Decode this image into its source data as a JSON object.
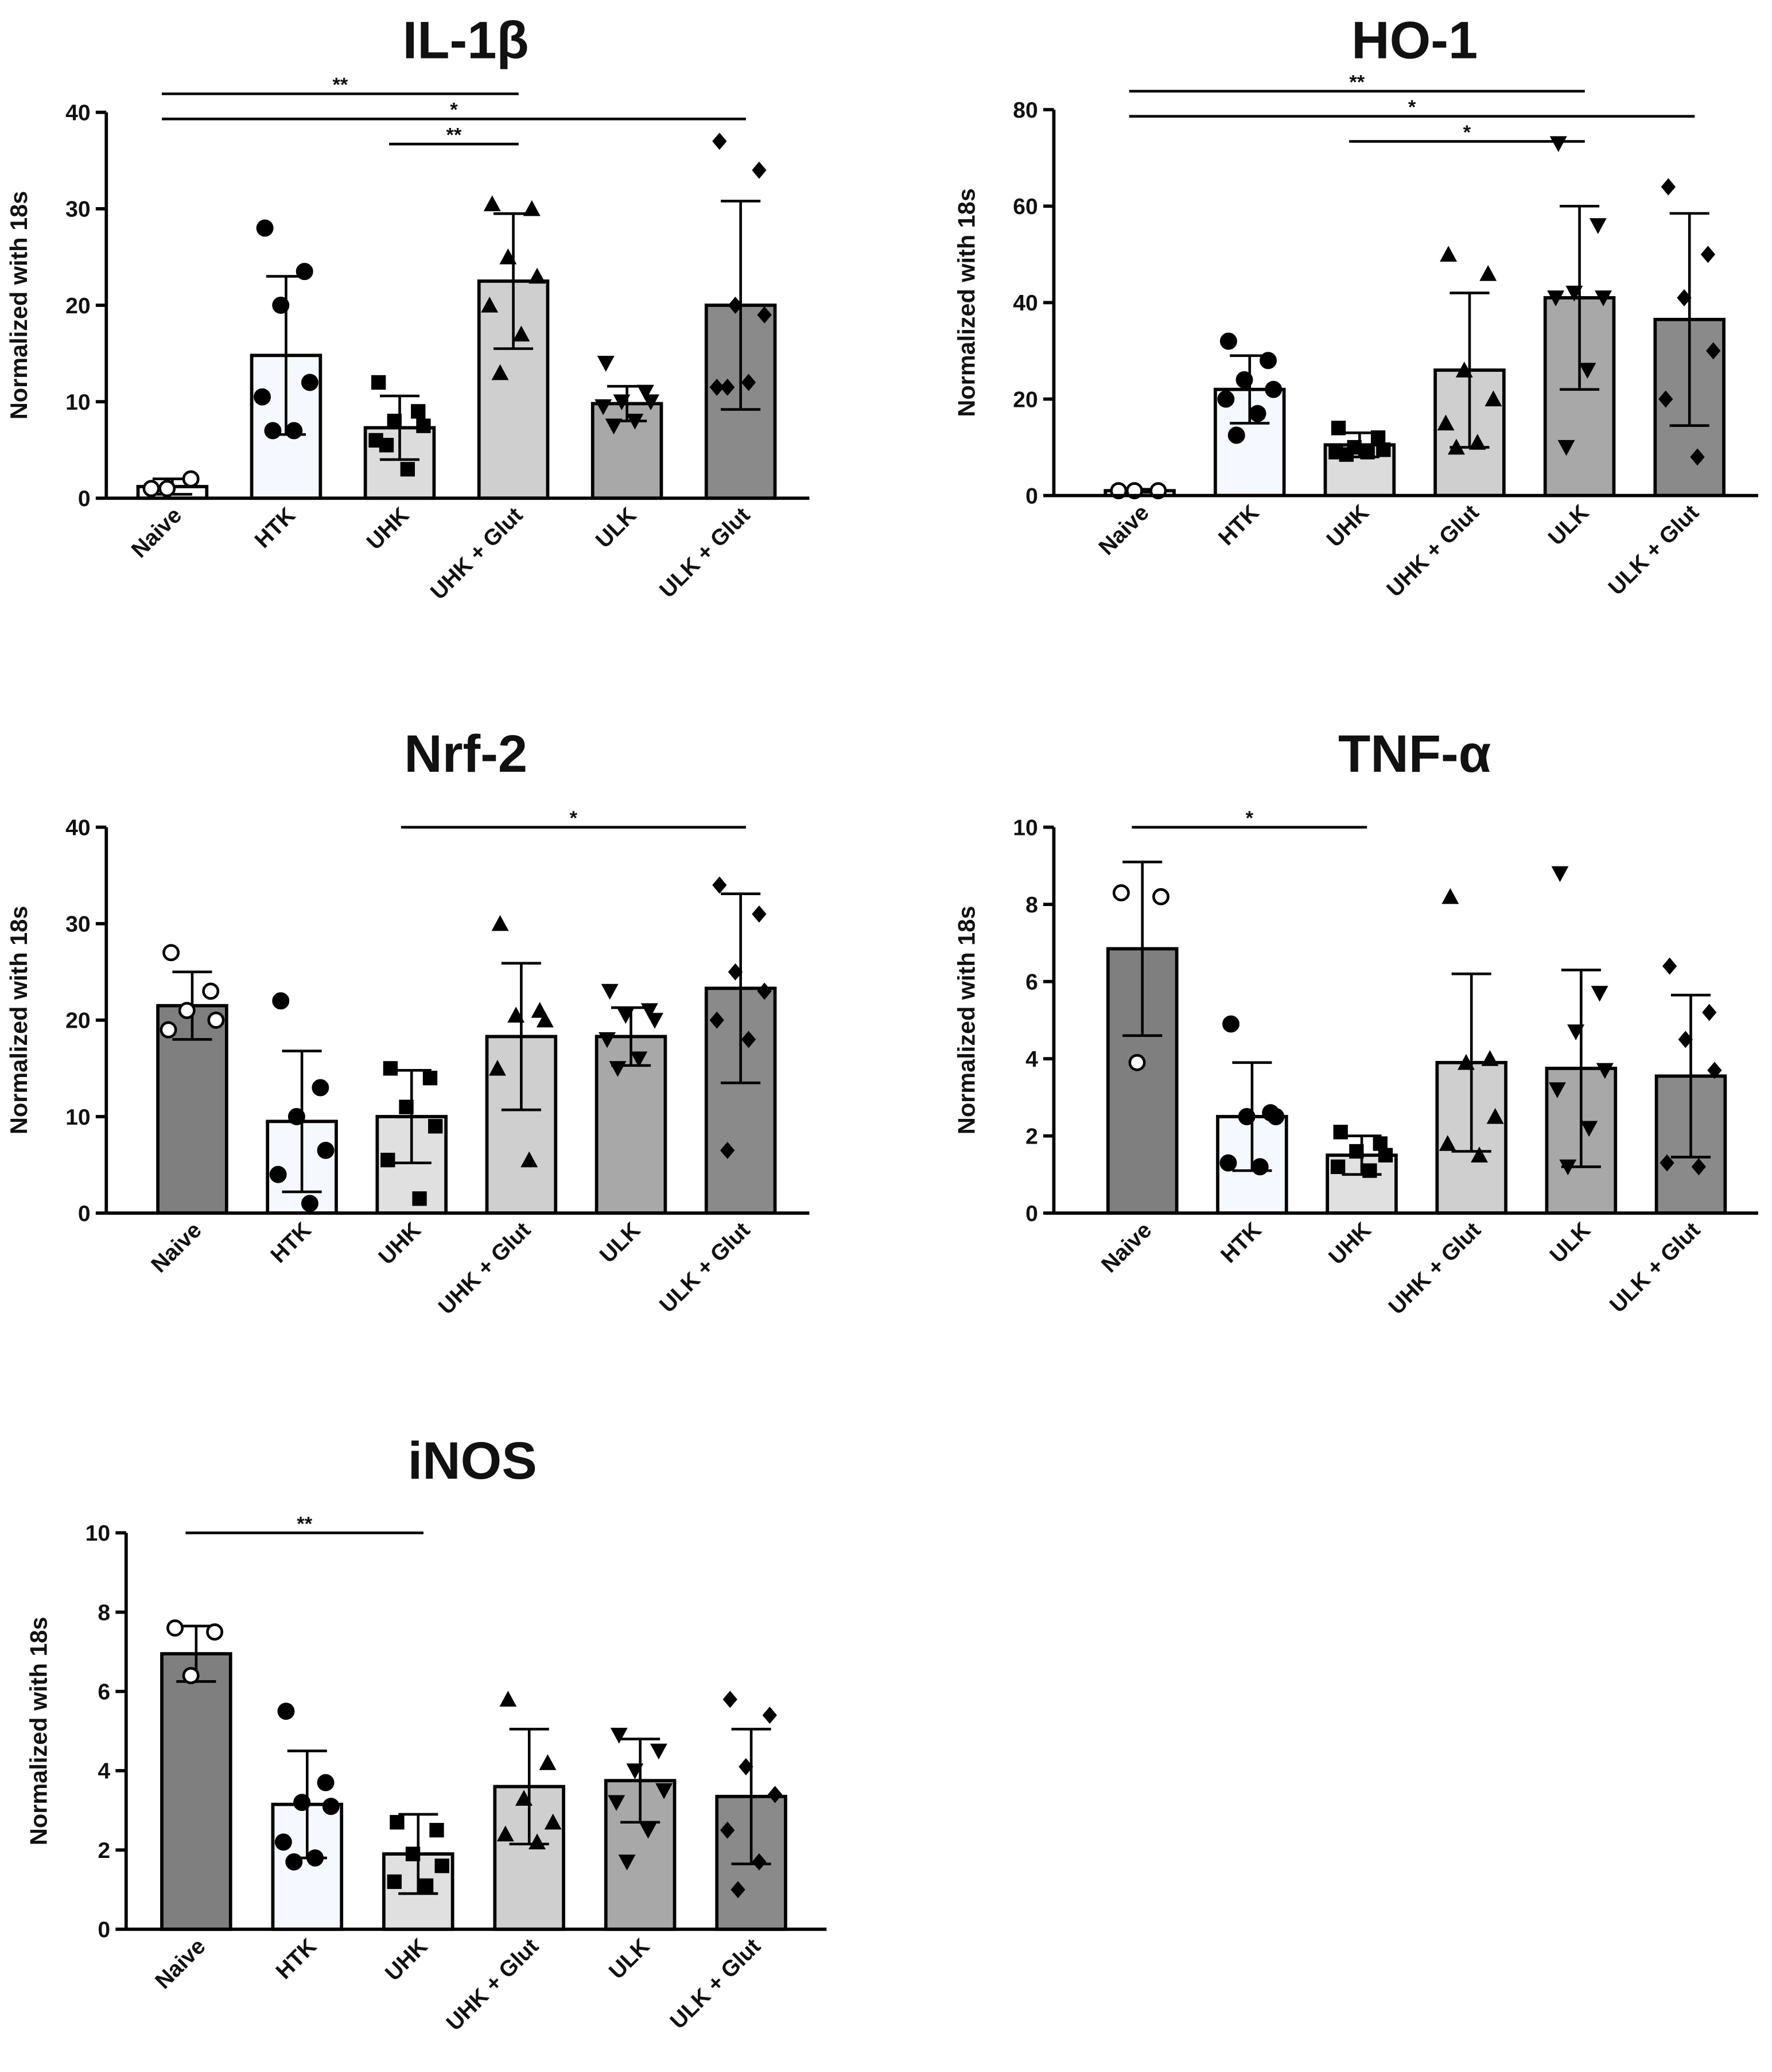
{
  "chart_data": [
    {
      "type": "bar",
      "title": "IL-1β",
      "y_label": "Normalized with 18s",
      "categories": [
        "Naive",
        "HTK",
        "UHK",
        "UHK + Glut",
        "ULK",
        "ULK + Glut"
      ],
      "values": [
        1.2,
        14.8,
        7.3,
        22.5,
        9.8,
        20
      ],
      "errors": [
        0.8,
        8.2,
        3.3,
        7,
        1.8,
        10.8
      ],
      "points": [
        [
          1,
          2,
          1
        ],
        [
          28,
          23.5,
          20,
          12,
          10.5,
          7,
          7
        ],
        [
          12,
          9,
          8,
          7.5,
          6,
          3,
          5.5
        ],
        [
          30.5,
          30,
          25,
          23,
          20,
          17,
          13
        ],
        [
          14,
          11,
          10,
          10,
          9.5,
          8,
          7.5
        ],
        [
          37,
          34,
          20,
          19,
          11.5,
          12,
          11.5
        ]
      ],
      "colors": [
        "#ffffff",
        "#f5f9ff",
        "#dcdcdc",
        "#cfcfcf",
        "#a8a8a8",
        "#8a8a8a"
      ],
      "markers": [
        "open-circle",
        "circle",
        "square",
        "triangle",
        "triangle-down",
        "diamond"
      ],
      "ylim": [
        0,
        40
      ],
      "yticks": [
        0,
        10,
        20,
        30,
        40
      ],
      "annotations": [
        {
          "from": "Naive",
          "to": "UHK + Glut",
          "label": "**"
        },
        {
          "from": "Naive",
          "to": "ULK + Glut",
          "label": "*"
        },
        {
          "from": "UHK",
          "to": "UHK + Glut",
          "label": "**"
        }
      ]
    },
    {
      "type": "bar",
      "title": "HO-1",
      "y_label": "Normalized with 18s",
      "categories": [
        "Naive",
        "HTK",
        "UHK",
        "UHK + Glut",
        "ULK",
        "ULK + Glut"
      ],
      "values": [
        1,
        22,
        10.5,
        26,
        41,
        36.5
      ],
      "errors": [
        0.3,
        7,
        2.5,
        16,
        19,
        22
      ],
      "points": [
        [
          1,
          1,
          1
        ],
        [
          32,
          28,
          24,
          22,
          20,
          17,
          12.5
        ],
        [
          14,
          12,
          10,
          9.5,
          9,
          9,
          8.5
        ],
        [
          50,
          46,
          26,
          20,
          15,
          11,
          10
        ],
        [
          73,
          56,
          42,
          41,
          41,
          26,
          10
        ],
        [
          64,
          50,
          41,
          30,
          20,
          8
        ]
      ],
      "colors": [
        "#ffffff",
        "#f5f9ff",
        "#dcdcdc",
        "#cfcfcf",
        "#a8a8a8",
        "#8a8a8a"
      ],
      "markers": [
        "open-circle",
        "circle",
        "square",
        "triangle",
        "triangle-down",
        "diamond"
      ],
      "ylim": [
        0,
        80
      ],
      "yticks": [
        0,
        20,
        40,
        60,
        80
      ],
      "annotations": [
        {
          "from": "Naive",
          "to": "ULK",
          "label": "**"
        },
        {
          "from": "Naive",
          "to": "ULK + Glut",
          "label": "*"
        },
        {
          "from": "UHK",
          "to": "ULK",
          "label": "*"
        }
      ]
    },
    {
      "type": "bar",
      "title": "Nrf-2",
      "y_label": "Normalized with 18s",
      "categories": [
        "Naive",
        "HTK",
        "UHK",
        "UHK + Glut",
        "ULK",
        "ULK + Glut"
      ],
      "values": [
        21.5,
        9.5,
        10,
        18.3,
        18.3,
        23.3
      ],
      "errors": [
        3.5,
        7.3,
        4.8,
        7.6,
        3,
        9.8
      ],
      "points": [
        [
          27,
          23,
          21,
          20,
          19
        ],
        [
          22,
          13,
          10,
          6.5,
          4,
          1
        ],
        [
          15,
          14,
          11,
          9,
          5.5,
          1.5
        ],
        [
          30,
          21,
          20.5,
          20,
          15,
          5.5
        ],
        [
          23,
          21,
          20.5,
          20,
          18,
          16,
          15
        ],
        [
          34,
          31,
          25,
          23,
          20,
          18,
          6.5
        ]
      ],
      "colors": [
        "#7f7f7f",
        "#f5f9ff",
        "#e0e0e0",
        "#cfcfcf",
        "#a8a8a8",
        "#8a8a8a"
      ],
      "markers": [
        "open-circle",
        "circle",
        "square",
        "triangle",
        "triangle-down",
        "diamond"
      ],
      "ylim": [
        0,
        40
      ],
      "yticks": [
        0,
        10,
        20,
        30,
        40
      ],
      "annotations": [
        {
          "from": "UHK",
          "to": "ULK + Glut",
          "label": "*"
        }
      ]
    },
    {
      "type": "bar",
      "title": "TNF-α",
      "y_label": "Normalized with 18s",
      "categories": [
        "Naive",
        "HTK",
        "UHK",
        "UHK + Glut",
        "ULK",
        "ULK + Glut"
      ],
      "values": [
        6.85,
        2.5,
        1.5,
        3.9,
        3.75,
        3.55
      ],
      "errors": [
        2.25,
        1.4,
        0.5,
        2.3,
        2.55,
        2.1
      ],
      "points": [
        [
          8.3,
          8.2,
          3.9
        ],
        [
          4.9,
          2.6,
          2.5,
          2.5,
          1.3,
          1.2
        ],
        [
          2.1,
          1.8,
          1.6,
          1.5,
          1.2,
          1.1
        ],
        [
          8.2,
          4,
          3.9,
          2.5,
          1.8,
          1.5
        ],
        [
          8.8,
          5.7,
          4.7,
          3.7,
          3.2,
          2.2,
          1.2
        ],
        [
          6.4,
          5.2,
          4.5,
          3.7,
          1.3,
          1.2
        ]
      ],
      "colors": [
        "#7f7f7f",
        "#f5f9ff",
        "#e0e0e0",
        "#cfcfcf",
        "#a8a8a8",
        "#8a8a8a"
      ],
      "markers": [
        "open-circle",
        "circle",
        "square",
        "triangle",
        "triangle-down",
        "diamond"
      ],
      "ylim": [
        0,
        10
      ],
      "yticks": [
        0,
        2,
        4,
        6,
        8,
        10
      ],
      "annotations": [
        {
          "from": "Naive",
          "to": "UHK",
          "label": "*"
        }
      ]
    },
    {
      "type": "bar",
      "title": "iNOS",
      "y_label": "Normalized with 18s",
      "categories": [
        "Naive",
        "HTK",
        "UHK",
        "UHK + Glut",
        "ULK",
        "ULK + Glut"
      ],
      "values": [
        6.95,
        3.15,
        1.9,
        3.6,
        3.75,
        3.35
      ],
      "errors": [
        0.7,
        1.35,
        1.0,
        1.45,
        1.05,
        1.7
      ],
      "points": [
        [
          7.6,
          7.5,
          6.4
        ],
        [
          5.5,
          3.7,
          3.2,
          3.1,
          2.2,
          1.8,
          1.7
        ],
        [
          2.7,
          2.5,
          1.9,
          1.6,
          1.2,
          1.1
        ],
        [
          5.8,
          4.2,
          3.3,
          2.7,
          2.4,
          2.2
        ],
        [
          4.9,
          4.5,
          4,
          3.5,
          3.2,
          2.5,
          1.7
        ],
        [
          5.8,
          5.4,
          4.1,
          3.4,
          2.5,
          1.7,
          1
        ]
      ],
      "colors": [
        "#7f7f7f",
        "#f5f9ff",
        "#e0e0e0",
        "#cfcfcf",
        "#a8a8a8",
        "#8a8a8a"
      ],
      "markers": [
        "open-circle",
        "circle",
        "square",
        "triangle",
        "triangle-down",
        "diamond"
      ],
      "ylim": [
        0,
        10
      ],
      "yticks": [
        0,
        2,
        4,
        6,
        8,
        10
      ],
      "annotations": [
        {
          "from": "Naive",
          "to": "UHK",
          "label": "**"
        }
      ]
    }
  ]
}
